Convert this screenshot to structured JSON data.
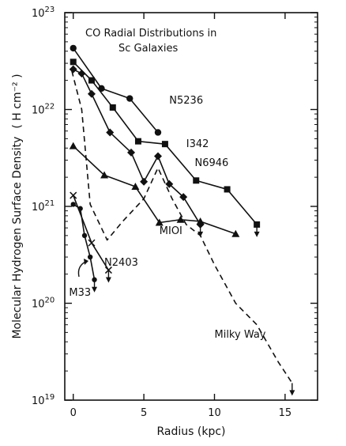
{
  "chart_data": {
    "type": "line",
    "title_lines": [
      "CO Radial Distributions in",
      "Sc Galaxies"
    ],
    "xlabel": "Radius (kpc)",
    "ylabel": "Molecular Hydrogen Surface Density",
    "ylabel_unit": "( H cm⁻² )",
    "x_ticks": [
      0,
      5,
      10,
      15
    ],
    "y_ticks": [
      {
        "value": 1e+19,
        "base": "10",
        "exp": "19"
      },
      {
        "value": 1e+20,
        "base": "10",
        "exp": "20"
      },
      {
        "value": 1e+21,
        "base": "10",
        "exp": "21"
      },
      {
        "value": 1e+22,
        "base": "10",
        "exp": "22"
      },
      {
        "value": 1e+23,
        "base": "10",
        "exp": "23"
      }
    ],
    "xlim": [
      -0.6,
      17.3
    ],
    "ylim": [
      1e+19,
      1e+23
    ],
    "yscale": "log",
    "grid": false,
    "series": [
      {
        "name": "N5236",
        "marker": "circle",
        "dash": false,
        "x": [
          0,
          2,
          4,
          6
        ],
        "y": [
          4.3e+22,
          1.65e+22,
          1.3e+22,
          5.8e+21
        ]
      },
      {
        "name": "N6946",
        "marker": "square",
        "dash": false,
        "x": [
          0,
          1.3,
          2.8,
          4.6,
          6.5,
          8.7,
          10.9,
          13.0
        ],
        "y": [
          3.1e+22,
          2e+22,
          1.05e+22,
          4.7e+21,
          4.4e+21,
          1.85e+21,
          1.5e+21,
          6.5e+20
        ],
        "upper_limit_last": true
      },
      {
        "name": "I342",
        "marker": "diamond",
        "dash": false,
        "x": [
          0,
          0.6,
          1.3,
          2.6,
          4.1,
          5.0,
          6.0,
          6.8,
          7.8,
          9.0
        ],
        "y": [
          2.6e+22,
          2.35e+22,
          1.45e+22,
          5.8e+21,
          3.6e+21,
          1.8e+21,
          3.3e+21,
          1.7e+21,
          1.25e+21,
          6.5e+20
        ],
        "upper_limit_last": true
      },
      {
        "name": "M101",
        "marker": "triangle",
        "dash": false,
        "x": [
          0,
          2.2,
          4.4,
          6.1,
          7.6,
          9.0,
          11.5
        ],
        "y": [
          4.2e+21,
          2.1e+21,
          1.6e+21,
          6.8e+20,
          7.3e+20,
          7e+20,
          5.2e+20
        ]
      },
      {
        "name": "M33",
        "marker": "dot",
        "dash": false,
        "x": [
          0,
          0.5,
          0.8,
          1.2,
          1.5
        ],
        "y": [
          1.05e+21,
          9.5e+20,
          5e+20,
          3e+20,
          1.75e+20
        ],
        "upper_limit_last": true
      },
      {
        "name": "N2403",
        "marker": "cross",
        "dash": false,
        "x": [
          0,
          1.3,
          2.5
        ],
        "y": [
          1.3e+21,
          4.2e+20,
          2.2e+20
        ],
        "upper_limit_last": true
      },
      {
        "name": "Milky Way",
        "marker": "none",
        "dash": true,
        "x": [
          -0.1,
          0.6,
          1.2,
          2.4,
          3.5,
          5.0,
          6.0,
          7.0,
          8.0,
          9.0,
          10.0,
          11.5,
          13.0,
          14.5,
          15.5
        ],
        "y": [
          2.5e+22,
          1e+22,
          1.05e+21,
          4.5e+20,
          7e+20,
          1.2e+21,
          2.5e+21,
          1.2e+21,
          6.5e+20,
          5e+20,
          2.5e+20,
          1e+20,
          6e+19,
          2.5e+19,
          1.5e+19
        ],
        "upper_limit_last": true
      }
    ],
    "annotations": [
      {
        "text": "N5236",
        "x": 6.8,
        "y": 1.15e+22
      },
      {
        "text": "I342",
        "x": 8.0,
        "y": 4.1e+21
      },
      {
        "text": "N6946",
        "x": 8.6,
        "y": 2.6e+21
      },
      {
        "text": "MIOI",
        "x": 6.1,
        "y": 5.2e+20
      },
      {
        "text": "N2403",
        "x": 2.2,
        "y": 2.45e+20
      },
      {
        "text": "M33",
        "x": -0.3,
        "y": 1.2e+20
      },
      {
        "text": "Milky Way",
        "x": 10.0,
        "y": 4.4e+19
      }
    ]
  }
}
